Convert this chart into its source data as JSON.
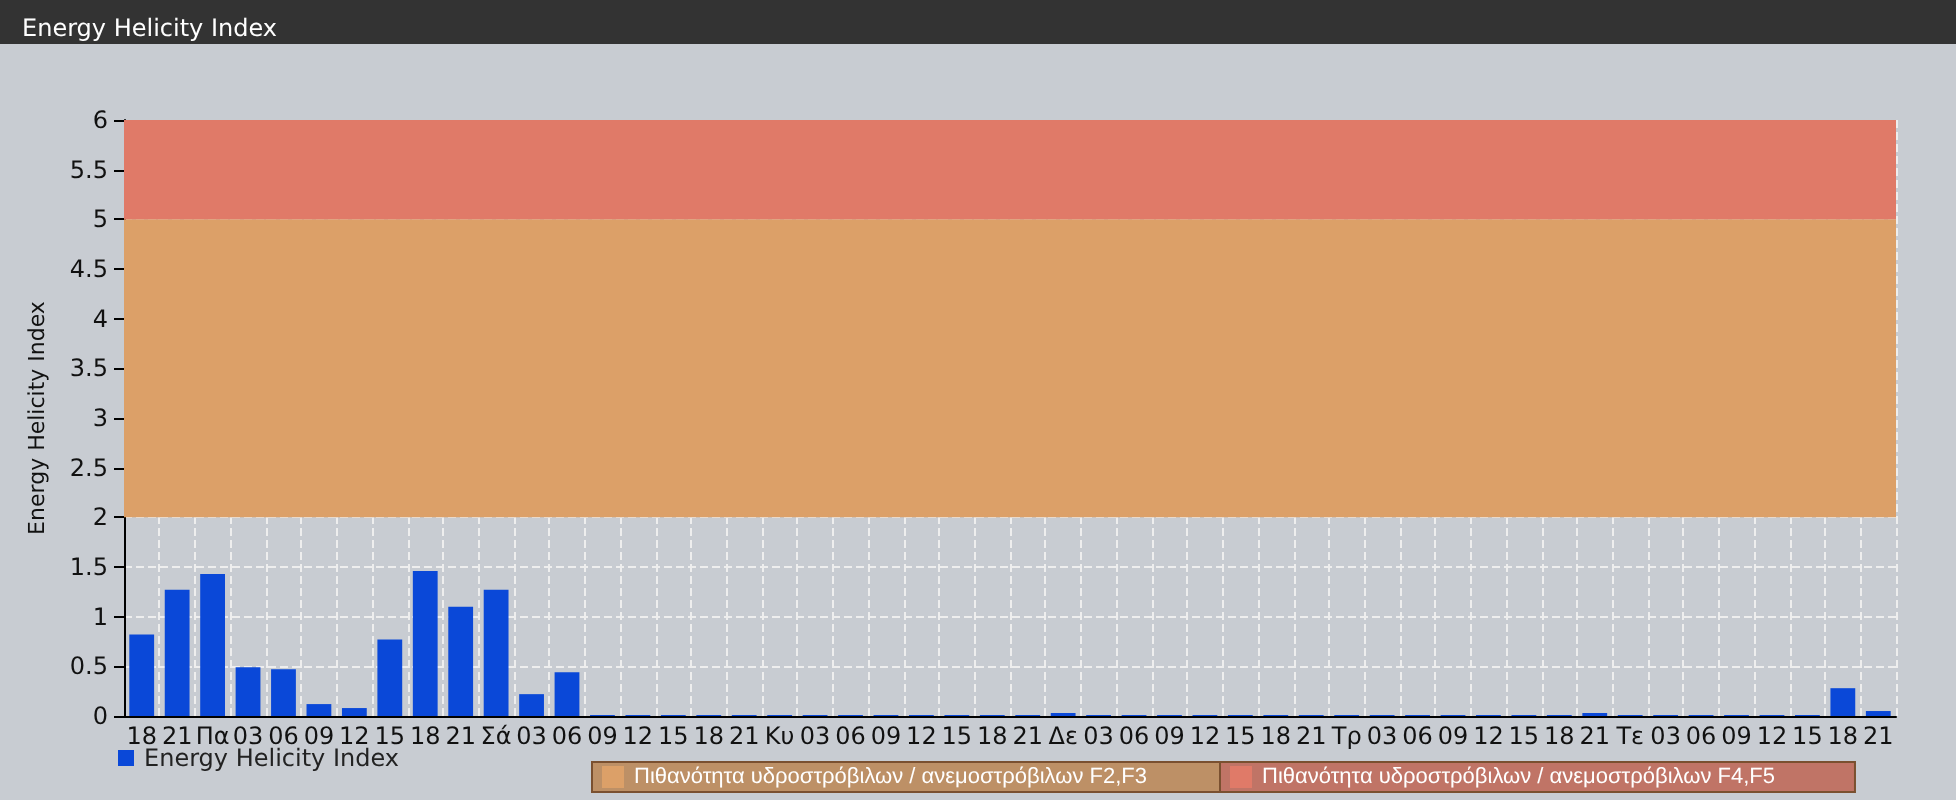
{
  "chart_data": {
    "type": "bar",
    "title": "Energy Helicity Index",
    "ylabel": "Energy Helicity Index",
    "categories": [
      "18",
      "21",
      "Πα",
      "03",
      "06",
      "09",
      "12",
      "15",
      "18",
      "21",
      "Σά",
      "03",
      "06",
      "09",
      "12",
      "15",
      "18",
      "21",
      "Κυ",
      "03",
      "06",
      "09",
      "12",
      "15",
      "18",
      "21",
      "Δε",
      "03",
      "06",
      "09",
      "12",
      "15",
      "18",
      "21",
      "Τρ",
      "03",
      "06",
      "09",
      "12",
      "15",
      "18",
      "21",
      "Τε",
      "03",
      "06",
      "09",
      "12",
      "15",
      "18",
      "21"
    ],
    "series": [
      {
        "name": "Energy Helicity Index",
        "color": "#0a48d8",
        "values": [
          0.82,
          1.27,
          1.43,
          0.49,
          0.47,
          0.12,
          0.08,
          0.77,
          1.46,
          1.1,
          1.27,
          0.22,
          0.44,
          0.01,
          0.01,
          0.01,
          0.01,
          0.01,
          0.01,
          0.01,
          0.01,
          0.01,
          0.01,
          0.01,
          0.01,
          0.01,
          0.03,
          0.01,
          0.01,
          0.01,
          0.01,
          0.01,
          0.01,
          0.01,
          0.01,
          0.01,
          0.01,
          0.01,
          0.01,
          0.01,
          0.01,
          0.03,
          0.01,
          0.01,
          0.01,
          0.01,
          0.01,
          0.01,
          0.28,
          0.05
        ]
      }
    ],
    "ylim": [
      0,
      6
    ],
    "yticks": [
      0,
      0.5,
      1,
      1.5,
      2,
      2.5,
      3,
      3.5,
      4,
      4.5,
      5,
      5.5,
      6
    ],
    "bands": [
      {
        "axis": "y",
        "from": 2,
        "to": 5,
        "label": "Πιθανότητα υδροστρόβιλων / ανεμοστρόβιλων F2,F3",
        "color": "#dca068"
      },
      {
        "axis": "y",
        "from": 5,
        "to": 6,
        "label": "Πιθανότητα υδροστρόβιλων / ανεμοστρόβιλων F4,F5",
        "color": "#e07a68"
      }
    ],
    "grid": true,
    "legend": "bottom left"
  }
}
